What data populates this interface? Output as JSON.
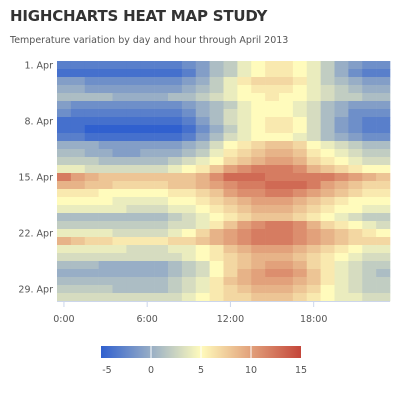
{
  "chart_data": {
    "type": "heatmap",
    "title": "HIGHCHARTS HEAT MAP STUDY",
    "subtitle": "Temperature variation by day and hour through April 2013",
    "x_tick_labels": [
      "0:00",
      "6:00",
      "12:00",
      "18:00"
    ],
    "x_tick_hours": [
      0,
      6,
      12,
      18
    ],
    "y_tick_labels": [
      "1. Apr",
      "8. Apr",
      "15. Apr",
      "22. Apr",
      "29. Apr"
    ],
    "y_tick_days": [
      1,
      8,
      15,
      22,
      29
    ],
    "x_range_hours": [
      0,
      23
    ],
    "y_range_days": [
      1,
      30
    ],
    "color_axis": {
      "min": -5,
      "max": 15,
      "tick_labels": [
        "-5",
        "0",
        "5",
        "10",
        "15"
      ],
      "stops": [
        "#3060cf",
        "#fffbbc",
        "#c4463a"
      ]
    },
    "hours": [
      0,
      1,
      2,
      3,
      4,
      5,
      6,
      7,
      8,
      9,
      10,
      11,
      12,
      13,
      14,
      15,
      16,
      17,
      18,
      19,
      20,
      21,
      22,
      23
    ],
    "days": [
      1,
      2,
      3,
      4,
      5,
      6,
      7,
      8,
      9,
      10,
      11,
      12,
      13,
      14,
      15,
      16,
      17,
      18,
      19,
      20,
      21,
      22,
      23,
      24,
      25,
      26,
      27,
      28,
      29,
      30
    ],
    "values": [
      [
        -3,
        -3,
        -3,
        -3,
        -3,
        -3,
        -3,
        -3,
        -3,
        -2,
        -1,
        1,
        2,
        4,
        5,
        6,
        6,
        5,
        4,
        2,
        0,
        -1,
        -2,
        -2
      ],
      [
        -4,
        -4,
        -4,
        -4,
        -4,
        -4,
        -4,
        -4,
        -4,
        -3,
        -1,
        1,
        2,
        4,
        5,
        6,
        6,
        5,
        4,
        2,
        0,
        -2,
        -3,
        -3
      ],
      [
        -1,
        -1,
        -2,
        -2,
        -2,
        -2,
        -2,
        -2,
        -2,
        -1,
        0,
        2,
        4,
        6,
        7,
        7,
        7,
        6,
        4,
        2,
        1,
        0,
        -1,
        -1
      ],
      [
        0,
        0,
        -1,
        -1,
        -1,
        -1,
        -1,
        -1,
        -1,
        0,
        1,
        2,
        4,
        5,
        6,
        6,
        6,
        5,
        4,
        3,
        2,
        1,
        0,
        0
      ],
      [
        1,
        1,
        1,
        1,
        0,
        0,
        0,
        0,
        1,
        1,
        2,
        3,
        4,
        5,
        5,
        6,
        5,
        5,
        4,
        3,
        2,
        2,
        1,
        1
      ],
      [
        -1,
        -2,
        -2,
        -2,
        -2,
        -2,
        -2,
        -2,
        -2,
        -1,
        0,
        1,
        2,
        4,
        5,
        5,
        5,
        4,
        3,
        1,
        0,
        -1,
        -1,
        -1
      ],
      [
        -2,
        -3,
        -3,
        -3,
        -3,
        -3,
        -3,
        -3,
        -3,
        -2,
        0,
        1,
        3,
        4,
        5,
        5,
        5,
        4,
        3,
        1,
        0,
        -2,
        -2,
        -2
      ],
      [
        -4,
        -4,
        -4,
        -4,
        -4,
        -4,
        -4,
        -4,
        -4,
        -3,
        -1,
        1,
        3,
        4,
        5,
        6,
        6,
        5,
        3,
        1,
        -1,
        -2,
        -3,
        -3
      ],
      [
        -4,
        -4,
        -5,
        -5,
        -5,
        -5,
        -5,
        -5,
        -5,
        -4,
        -2,
        0,
        2,
        4,
        5,
        6,
        6,
        5,
        3,
        1,
        -1,
        -2,
        -3,
        -3
      ],
      [
        -3,
        -3,
        -4,
        -4,
        -4,
        -4,
        -4,
        -4,
        -4,
        -3,
        -1,
        1,
        3,
        4,
        5,
        5,
        5,
        4,
        3,
        1,
        0,
        -1,
        -2,
        -2
      ],
      [
        0,
        0,
        0,
        -1,
        -1,
        -1,
        -1,
        -1,
        -1,
        0,
        1,
        3,
        5,
        6,
        7,
        8,
        8,
        7,
        5,
        4,
        3,
        2,
        1,
        1
      ],
      [
        1,
        1,
        0,
        0,
        -1,
        -1,
        0,
        0,
        0,
        1,
        2,
        4,
        6,
        7,
        8,
        9,
        9,
        8,
        6,
        5,
        4,
        3,
        2,
        2
      ],
      [
        2,
        2,
        2,
        1,
        1,
        1,
        1,
        1,
        2,
        3,
        4,
        5,
        7,
        8,
        9,
        10,
        10,
        9,
        7,
        6,
        5,
        4,
        3,
        3
      ],
      [
        4,
        4,
        3,
        3,
        3,
        3,
        3,
        3,
        4,
        5,
        6,
        8,
        10,
        11,
        12,
        12,
        12,
        11,
        9,
        8,
        7,
        6,
        5,
        5
      ],
      [
        12,
        10,
        9,
        8,
        8,
        8,
        8,
        8,
        8,
        8,
        9,
        11,
        13,
        13,
        13,
        12,
        12,
        12,
        12,
        12,
        11,
        10,
        9,
        8
      ],
      [
        9,
        9,
        8,
        8,
        7,
        7,
        7,
        7,
        8,
        8,
        9,
        10,
        11,
        12,
        12,
        13,
        13,
        13,
        12,
        10,
        9,
        8,
        7,
        7
      ],
      [
        6,
        6,
        6,
        5,
        5,
        5,
        5,
        5,
        6,
        6,
        7,
        8,
        10,
        11,
        11,
        12,
        12,
        11,
        10,
        9,
        8,
        7,
        6,
        6
      ],
      [
        5,
        5,
        5,
        5,
        4,
        4,
        4,
        4,
        5,
        5,
        6,
        7,
        8,
        9,
        10,
        10,
        10,
        9,
        8,
        7,
        6,
        5,
        5,
        5
      ],
      [
        4,
        4,
        4,
        4,
        4,
        3,
        3,
        3,
        4,
        4,
        5,
        6,
        7,
        8,
        9,
        9,
        9,
        8,
        7,
        6,
        5,
        5,
        4,
        4
      ],
      [
        1,
        1,
        1,
        1,
        1,
        1,
        1,
        1,
        2,
        3,
        4,
        5,
        6,
        7,
        8,
        8,
        8,
        7,
        6,
        5,
        4,
        3,
        2,
        2
      ],
      [
        2,
        2,
        2,
        2,
        2,
        2,
        2,
        2,
        3,
        3,
        4,
        6,
        8,
        10,
        11,
        12,
        12,
        11,
        9,
        7,
        6,
        5,
        4,
        3
      ],
      [
        4,
        4,
        4,
        4,
        3,
        3,
        3,
        3,
        4,
        5,
        7,
        9,
        10,
        11,
        12,
        12,
        12,
        11,
        10,
        9,
        8,
        7,
        6,
        5
      ],
      [
        9,
        8,
        7,
        7,
        6,
        6,
        6,
        6,
        7,
        7,
        8,
        9,
        10,
        11,
        12,
        12,
        12,
        11,
        10,
        9,
        8,
        7,
        7,
        7
      ],
      [
        4,
        4,
        4,
        4,
        4,
        3,
        3,
        3,
        4,
        4,
        5,
        6,
        8,
        9,
        10,
        10,
        10,
        9,
        8,
        7,
        6,
        5,
        4,
        4
      ],
      [
        3,
        3,
        3,
        3,
        3,
        3,
        3,
        3,
        3,
        4,
        5,
        6,
        7,
        8,
        9,
        9,
        9,
        8,
        7,
        6,
        5,
        4,
        3,
        3
      ],
      [
        1,
        1,
        1,
        0,
        0,
        0,
        0,
        0,
        1,
        2,
        3,
        5,
        7,
        8,
        9,
        10,
        10,
        9,
        7,
        6,
        4,
        3,
        2,
        2
      ],
      [
        0,
        0,
        0,
        0,
        0,
        0,
        0,
        0,
        1,
        2,
        3,
        5,
        7,
        9,
        10,
        11,
        11,
        10,
        8,
        6,
        4,
        3,
        2,
        1
      ],
      [
        1,
        1,
        1,
        1,
        1,
        1,
        1,
        1,
        2,
        3,
        4,
        6,
        8,
        9,
        10,
        10,
        10,
        9,
        8,
        6,
        4,
        3,
        2,
        2
      ],
      [
        2,
        2,
        2,
        2,
        1,
        1,
        1,
        1,
        2,
        3,
        4,
        6,
        7,
        8,
        9,
        9,
        9,
        8,
        7,
        5,
        4,
        3,
        2,
        2
      ],
      [
        3,
        3,
        3,
        3,
        3,
        3,
        3,
        3,
        3,
        4,
        5,
        6,
        7,
        7,
        8,
        8,
        8,
        7,
        6,
        5,
        4,
        4,
        3,
        3
      ]
    ]
  }
}
